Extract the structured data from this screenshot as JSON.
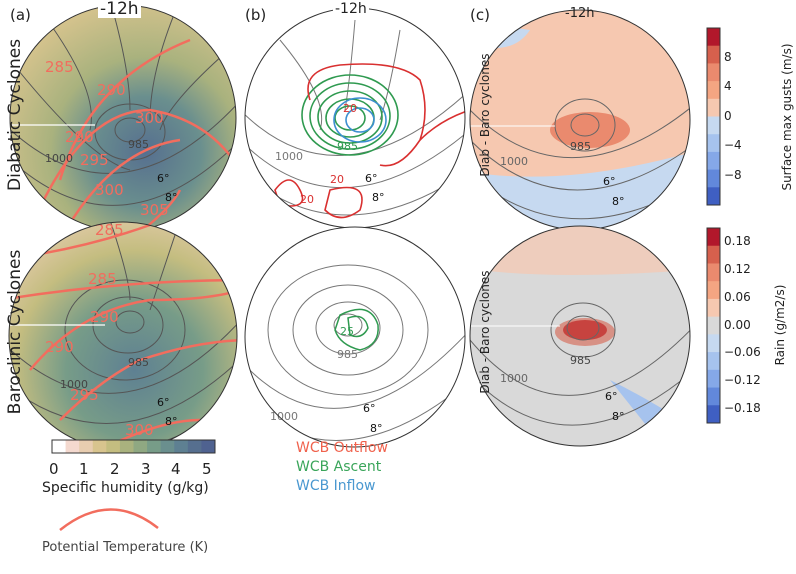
{
  "panels": {
    "a": {
      "label": "(a)",
      "time": "-12h"
    },
    "b": {
      "label": "(b)",
      "time": "-12h"
    },
    "c": {
      "label": "(c)",
      "time": "-12h"
    }
  },
  "row_labels": {
    "top": "Diabatic Cyclones",
    "bottom": "Baroclinic Cyclones"
  },
  "diff_labels": {
    "top": "Diab - Baro cyclones",
    "bottom": "Diab - Baro cyclones"
  },
  "contour_labels": {
    "slp_985": "985",
    "slp_1000": "1000",
    "lat6": "6°",
    "lat8": "8°",
    "theta": [
      "285",
      "290",
      "295",
      "300",
      "305"
    ],
    "wcb_20": "20",
    "wcb_25": "25"
  },
  "humidity_colorbar": {
    "ticks": [
      "0",
      "1",
      "2",
      "3",
      "4",
      "5"
    ],
    "label": "Specific humidity (g/kg)",
    "colors": [
      "#ffffff",
      "#f4d9cf",
      "#e8cdb0",
      "#d8c48e",
      "#c4bd80",
      "#a9b27e",
      "#8fa882",
      "#779c88",
      "#6a8f8e",
      "#5e8092",
      "#566f8f",
      "#4f6290"
    ]
  },
  "legend": {
    "wcb": [
      {
        "label": "WCB Outflow",
        "color": "#f0624d"
      },
      {
        "label": "WCB Ascent",
        "color": "#3aa55a"
      },
      {
        "label": "WCB Inflow",
        "color": "#4a98d0"
      }
    ],
    "theta_label": "Potential Temperature (K)"
  },
  "gust_colorbar": {
    "label": "Surface max gusts (m/s)",
    "ticks": [
      "8",
      "4",
      "0",
      "−4",
      "−8"
    ]
  },
  "rain_colorbar": {
    "label": "Rain (g/m2/s)",
    "ticks": [
      "0.18",
      "0.12",
      "0.06",
      "0.00",
      "−0.06",
      "−0.12",
      "−0.18"
    ]
  },
  "diverging_colors": [
    "#b2182b",
    "#d6604d",
    "#ea8a6e",
    "#f4a582",
    "#f6c8b0",
    "#d9d9d9",
    "#c6d9f0",
    "#a6c3ee",
    "#85a8e8",
    "#6288db",
    "#3f5fc2"
  ]
}
